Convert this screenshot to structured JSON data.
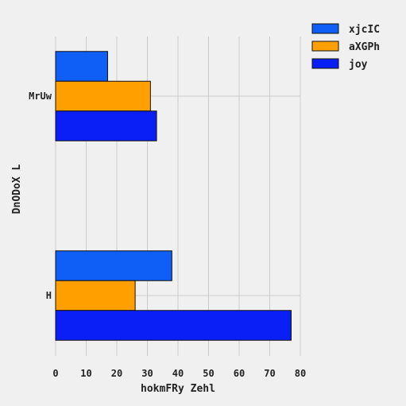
{
  "chart_data": {
    "type": "bar",
    "orientation": "horizontal",
    "categories": [
      "MrUw",
      "H"
    ],
    "series": [
      {
        "name": "xjcIC",
        "values": [
          17,
          38
        ],
        "color": "#0f5ef5"
      },
      {
        "name": "aXGPh",
        "values": [
          31,
          26
        ],
        "color": "#ffa000"
      },
      {
        "name": "joy",
        "values": [
          33,
          77
        ],
        "color": "#0a1ff5"
      }
    ],
    "xlabel": "hokmFRy Zehl",
    "ylabel": "DnODoX L",
    "xlim": [
      0,
      80
    ],
    "xticks": [
      0,
      10,
      20,
      30,
      40,
      50,
      60,
      70,
      80
    ],
    "grid": true,
    "legend": "top-right"
  }
}
